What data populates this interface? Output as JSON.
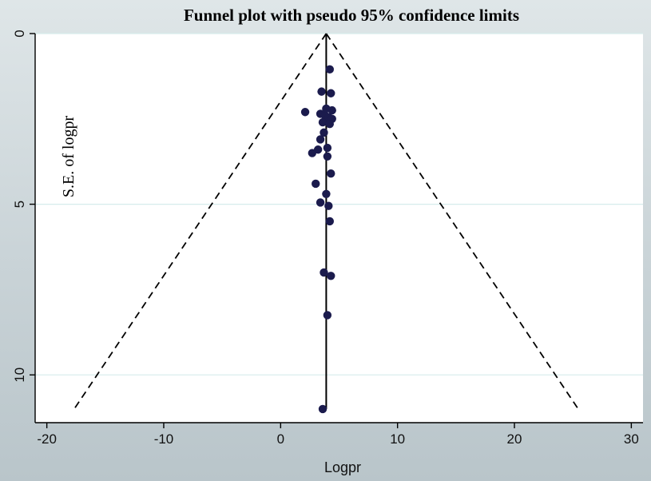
{
  "chart_data": {
    "type": "scatter",
    "title": "Funnel plot with pseudo 95% confidence limits",
    "xlabel": "Logpr",
    "ylabel": "S.E. of logpr",
    "xlim": [
      -21,
      31
    ],
    "ylim": [
      0,
      11.4
    ],
    "y_inverted": true,
    "x_ticks": [
      -20,
      -10,
      0,
      10,
      20,
      30
    ],
    "y_ticks": [
      0,
      5,
      10
    ],
    "x_tick_labels": [
      "-20",
      "-10",
      "0",
      "10",
      "20",
      "30"
    ],
    "y_tick_labels": [
      "0",
      "5",
      "10"
    ],
    "pooled_estimate": 3.9,
    "max_se": 11.0,
    "ci_multiplier": 1.96,
    "grid": true,
    "legend": "none",
    "colors": {
      "marker": "#1b1b4d",
      "lines": "#000000",
      "grid": "#d6ecec",
      "plot_bg": "#ffffff"
    },
    "points": [
      {
        "x": 4.2,
        "se": 1.05
      },
      {
        "x": 3.5,
        "se": 1.7
      },
      {
        "x": 4.3,
        "se": 1.75
      },
      {
        "x": 2.1,
        "se": 2.3
      },
      {
        "x": 3.4,
        "se": 2.35
      },
      {
        "x": 3.8,
        "se": 2.4
      },
      {
        "x": 4.1,
        "se": 2.45
      },
      {
        "x": 4.4,
        "se": 2.5
      },
      {
        "x": 3.6,
        "se": 2.6
      },
      {
        "x": 4.2,
        "se": 2.65
      },
      {
        "x": 4.4,
        "se": 2.25
      },
      {
        "x": 3.9,
        "se": 2.2
      },
      {
        "x": 3.7,
        "se": 2.9
      },
      {
        "x": 3.4,
        "se": 3.1
      },
      {
        "x": 4.0,
        "se": 3.35
      },
      {
        "x": 3.2,
        "se": 3.4
      },
      {
        "x": 2.7,
        "se": 3.5
      },
      {
        "x": 4.0,
        "se": 3.6
      },
      {
        "x": 4.3,
        "se": 4.1
      },
      {
        "x": 3.0,
        "se": 4.4
      },
      {
        "x": 3.9,
        "se": 4.7
      },
      {
        "x": 3.4,
        "se": 4.95
      },
      {
        "x": 4.1,
        "se": 5.05
      },
      {
        "x": 4.2,
        "se": 5.5
      },
      {
        "x": 3.7,
        "se": 7.0
      },
      {
        "x": 4.3,
        "se": 7.1
      },
      {
        "x": 4.0,
        "se": 8.25
      },
      {
        "x": 3.6,
        "se": 11.0
      }
    ]
  }
}
